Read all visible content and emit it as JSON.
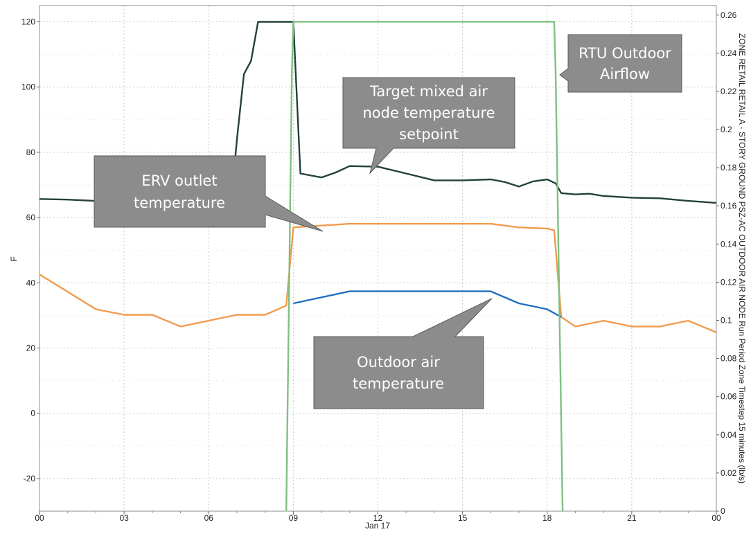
{
  "chart_data": {
    "type": "line",
    "xlabel": "Jan 17",
    "ylabel_left": "F",
    "ylabel_right": "ZONE RETAIL RETAIL A - STORY GROUND PSZ-AC OUTDOOR AIR NODE Run Period Zone Timestep 15 minutes (lb/s)",
    "x_ticks": [
      "00",
      "03",
      "06",
      "09",
      "12",
      "15",
      "18",
      "21",
      "00"
    ],
    "x_range_hours": [
      0,
      24
    ],
    "y_left_range": [
      -30,
      125
    ],
    "y_left_ticks": [
      "120",
      "100",
      "80",
      "60",
      "40",
      "20",
      "0",
      "-20"
    ],
    "y_left_tick_values": [
      120,
      100,
      80,
      60,
      40,
      20,
      0,
      -20
    ],
    "y_right_range": [
      0,
      0.265
    ],
    "y_right_ticks": [
      "0.26",
      "0.24",
      "0.22",
      "0.2",
      "0.18",
      "0.16",
      "0.14",
      "0.12",
      "0.1",
      "0.08",
      "0.06",
      "0.04",
      "0.02",
      "0"
    ],
    "y_right_tick_values": [
      0.26,
      0.24,
      0.22,
      0.2,
      0.18,
      0.16,
      0.14,
      0.12,
      0.1,
      0.08,
      0.06,
      0.04,
      0.02,
      0
    ],
    "grid": true,
    "series": [
      {
        "name": "Target mixed air node temperature setpoint",
        "axis": "left",
        "color": "#23403b",
        "x": [
          0,
          1,
          2,
          3,
          4,
          5,
          6,
          6.8,
          7.0,
          7.25,
          7.5,
          7.75,
          8.0,
          8.5,
          9.0,
          9.25,
          10,
          10.5,
          11,
          12,
          13,
          14,
          15,
          16,
          16.5,
          17,
          17.5,
          18,
          18.3,
          18.5,
          19,
          19.5,
          20,
          21,
          22,
          23,
          24
        ],
        "y": [
          65.7,
          65.5,
          65.1,
          65.1,
          65.1,
          65.1,
          65.1,
          65.1,
          84,
          104,
          108,
          120,
          120,
          120,
          120,
          73.5,
          72.3,
          73.8,
          75.8,
          75.6,
          73.5,
          71.4,
          71.4,
          71.7,
          70.9,
          69.5,
          71.1,
          71.7,
          70.5,
          67.5,
          67.1,
          67.3,
          66.6,
          66.1,
          65.9,
          65.1,
          64.5
        ]
      },
      {
        "name": "ERV outlet temperature",
        "axis": "left",
        "color": "#f39a4c",
        "x": [
          0,
          2,
          3,
          4,
          5,
          6,
          7,
          8,
          8.75,
          9.0,
          11,
          12,
          13,
          14,
          15,
          16,
          17,
          18,
          18.25,
          18.5,
          19,
          20,
          21,
          22,
          23,
          24
        ],
        "y": [
          42.6,
          31.9,
          30.2,
          30.2,
          26.6,
          28.4,
          30.2,
          30.2,
          33.0,
          57.0,
          58.1,
          58.1,
          58.1,
          58.1,
          58.1,
          58.1,
          57.0,
          56.6,
          56.1,
          29.5,
          26.6,
          28.4,
          26.6,
          26.6,
          28.4,
          24.8
        ]
      },
      {
        "name": "Outdoor air temperature",
        "axis": "left",
        "color": "#1f6fbf",
        "x": [
          9.0,
          11,
          12,
          13,
          14,
          15,
          16,
          17,
          18,
          18.5
        ],
        "y": [
          33.7,
          37.4,
          37.4,
          37.4,
          37.4,
          37.4,
          37.4,
          33.7,
          31.9,
          29.5
        ]
      },
      {
        "name": "RTU Outdoor Airflow",
        "axis": "right",
        "color": "#7fc081",
        "x": [
          8.75,
          8.95,
          9.0,
          18.25,
          18.3,
          18.55
        ],
        "y": [
          0,
          0.23,
          0.2565,
          0.2565,
          0.23,
          0
        ]
      }
    ],
    "annotations": [
      {
        "lines": [
          "RTU Outdoor",
          "Airflow"
        ]
      },
      {
        "lines": [
          "Target mixed air",
          "node temperature",
          "setpoint"
        ]
      },
      {
        "lines": [
          "ERV outlet",
          "temperature"
        ]
      },
      {
        "lines": [
          "Outdoor air",
          "temperature"
        ]
      }
    ]
  }
}
